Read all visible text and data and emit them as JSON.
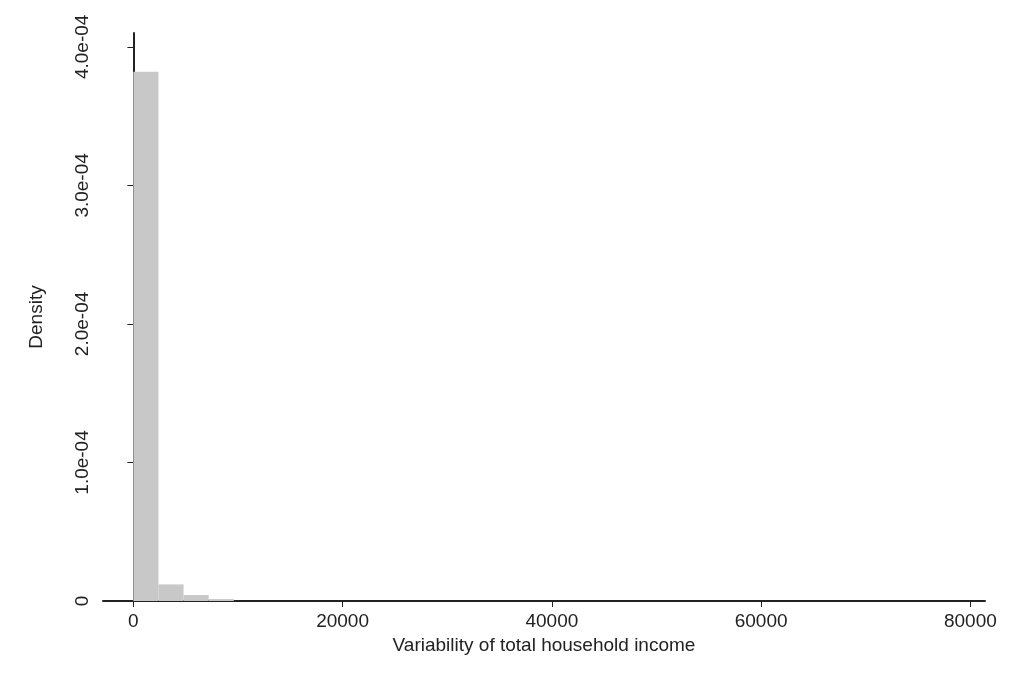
{
  "chart_data": {
    "type": "histogram",
    "xlabel": "Variability of total household income",
    "ylabel": "Density",
    "bins": [
      0,
      2400,
      4800,
      7200,
      9600
    ],
    "values": [
      0.000382,
      1.2e-05,
      4.3e-06,
      1.4e-06
    ],
    "color": "#c8c8c8",
    "xlim": [
      -2900,
      81400
    ],
    "xticks": [
      0,
      20000,
      40000,
      60000,
      80000
    ],
    "ylim": [
      0,
      0.00041
    ],
    "yticks": [
      0,
      {
        "value": 0.0001,
        "label": "1.0e-04"
      },
      {
        "value": 0.0002,
        "label": "2.0e-04"
      },
      {
        "value": 0.0003,
        "label": "3.0e-04"
      },
      {
        "value": 0.0004,
        "label": "4.0e-04"
      }
    ],
    "grid": false
  }
}
